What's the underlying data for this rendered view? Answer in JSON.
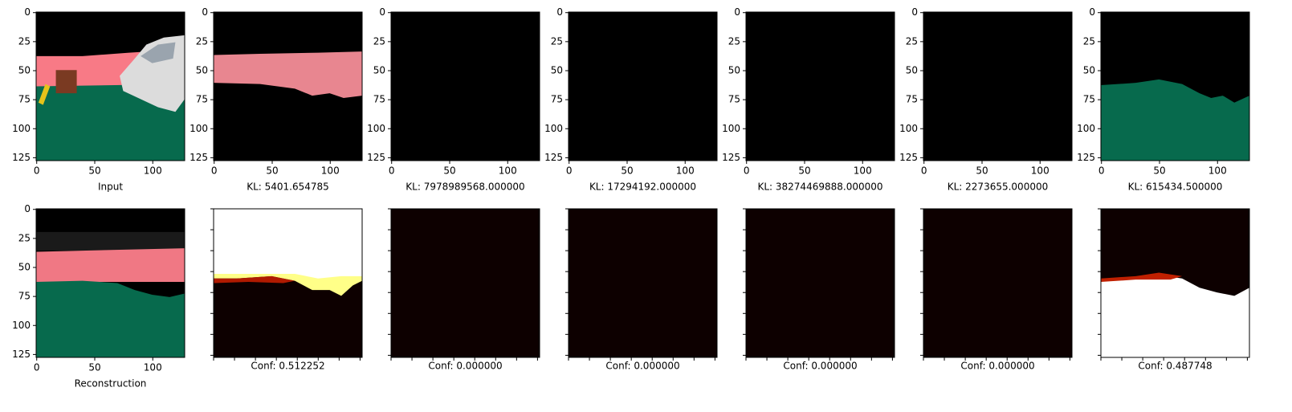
{
  "figure": {
    "top_row": [
      {
        "xlabel": "Input"
      },
      {
        "xlabel": "KL: 5401.654785"
      },
      {
        "xlabel": "KL: 7978989568.000000"
      },
      {
        "xlabel": "KL: 17294192.000000"
      },
      {
        "xlabel": "KL: 38274469888.000000"
      },
      {
        "xlabel": "KL: 2273655.000000"
      },
      {
        "xlabel": "KL: 615434.500000"
      }
    ],
    "bottom_row": [
      {
        "xlabel": "Reconstruction"
      },
      {
        "xlabel": "Conf: 0.512252"
      },
      {
        "xlabel": "Conf: 0.000000"
      },
      {
        "xlabel": "Conf: 0.000000"
      },
      {
        "xlabel": "Conf: 0.000000"
      },
      {
        "xlabel": "Conf: 0.000000"
      },
      {
        "xlabel": "Conf: 0.487748"
      }
    ],
    "xlim": [
      -0.5,
      127.5
    ],
    "ylim": [
      127.5,
      -0.5
    ],
    "xticks": [
      0,
      50,
      100
    ],
    "yticks": [
      0,
      25,
      50,
      75,
      100,
      125
    ]
  }
}
